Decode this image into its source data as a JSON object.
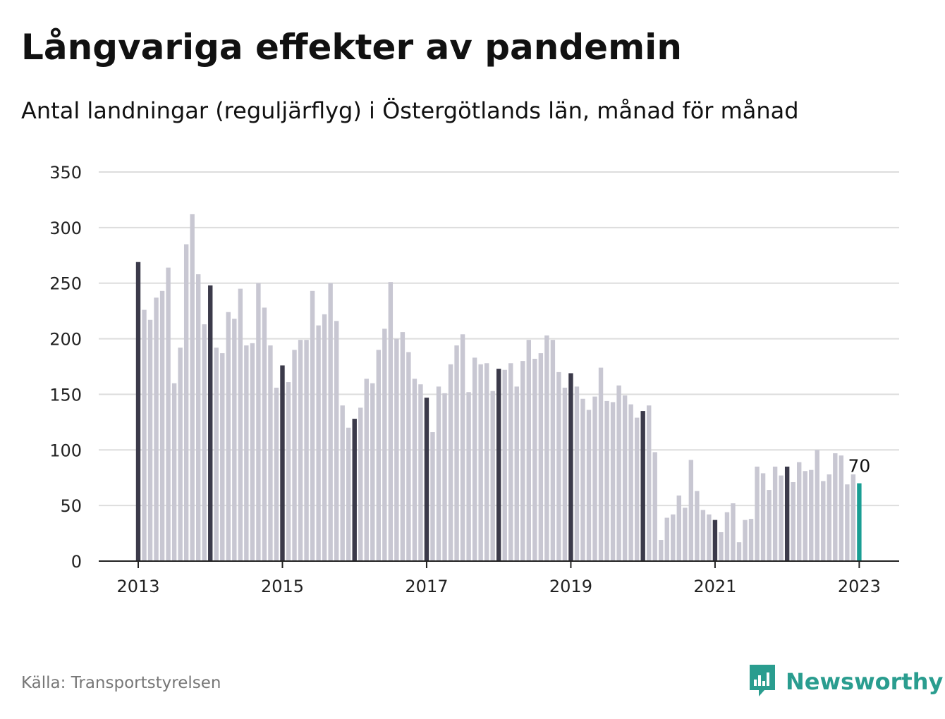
{
  "title": "Långvariga effekter av pandemin",
  "subtitle": "Antal landningar (reguljärflyg) i Östergötlands län, månad för månad",
  "source": "Källa: Transportstyrelsen",
  "brand": {
    "name": "Newsworthy",
    "icon": "bar-chart-speech-icon",
    "color": "#2a9d8f"
  },
  "colors": {
    "bar": "#c8c7d2",
    "january_bar": "#3b3a4a",
    "last_bar": "#1a9e94",
    "grid": "#dddddd",
    "axis": "#222222"
  },
  "chart_data": {
    "type": "bar",
    "title": "Långvariga effekter av pandemin",
    "subtitle": "Antal landningar (reguljärflyg) i Östergötlands län, månad för månad",
    "start": "2013-01",
    "frequency": "monthly",
    "ylim": [
      0,
      350
    ],
    "yticks": [
      0,
      50,
      100,
      150,
      200,
      250,
      300,
      350
    ],
    "xticks": [
      "2013",
      "2015",
      "2017",
      "2019",
      "2021",
      "2023"
    ],
    "grid": true,
    "highlight": "january bars dark, last bar teal",
    "annotation": {
      "date": "2023-01",
      "text": "70"
    },
    "values": [
      269,
      226,
      217,
      237,
      243,
      264,
      160,
      192,
      285,
      312,
      258,
      213,
      248,
      192,
      187,
      224,
      218,
      245,
      194,
      196,
      250,
      228,
      194,
      156,
      176,
      161,
      190,
      199,
      199,
      243,
      212,
      222,
      250,
      216,
      140,
      120,
      128,
      138,
      164,
      160,
      190,
      209,
      251,
      200,
      206,
      188,
      164,
      159,
      147,
      116,
      157,
      151,
      177,
      194,
      204,
      152,
      183,
      177,
      178,
      153,
      173,
      172,
      178,
      157,
      180,
      199,
      182,
      187,
      203,
      199,
      170,
      156,
      169,
      157,
      146,
      136,
      148,
      174,
      144,
      143,
      158,
      149,
      141,
      129,
      135,
      140,
      98,
      19,
      39,
      42,
      59,
      48,
      91,
      63,
      46,
      42,
      37,
      26,
      44,
      52,
      17,
      37,
      38,
      85,
      79,
      64,
      85,
      77,
      85,
      71,
      89,
      81,
      82,
      100,
      72,
      78,
      97,
      95,
      69,
      78,
      70
    ]
  }
}
